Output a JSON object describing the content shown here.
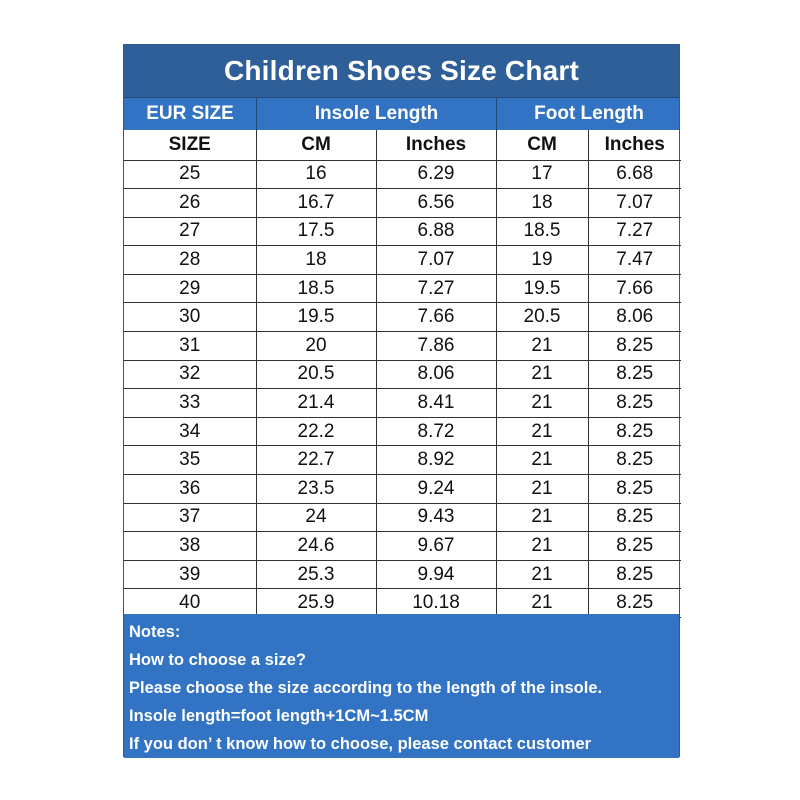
{
  "title": "Children Shoes Size Chart",
  "group_headers": {
    "eur": "EUR SIZE",
    "insole": "Insole Length",
    "foot": "Foot Length"
  },
  "sub_headers": [
    "SIZE",
    "CM",
    "Inches",
    "CM",
    "Inches"
  ],
  "rows": [
    [
      "25",
      "16",
      "6.29",
      "17",
      "6.68"
    ],
    [
      "26",
      "16.7",
      "6.56",
      "18",
      "7.07"
    ],
    [
      "27",
      "17.5",
      "6.88",
      "18.5",
      "7.27"
    ],
    [
      "28",
      "18",
      "7.07",
      "19",
      "7.47"
    ],
    [
      "29",
      "18.5",
      "7.27",
      "19.5",
      "7.66"
    ],
    [
      "30",
      "19.5",
      "7.66",
      "20.5",
      "8.06"
    ],
    [
      "31",
      "20",
      "7.86",
      "21",
      "8.25"
    ],
    [
      "32",
      "20.5",
      "8.06",
      "21",
      "8.25"
    ],
    [
      "33",
      "21.4",
      "8.41",
      "21",
      "8.25"
    ],
    [
      "34",
      "22.2",
      "8.72",
      "21",
      "8.25"
    ],
    [
      "35",
      "22.7",
      "8.92",
      "21",
      "8.25"
    ],
    [
      "36",
      "23.5",
      "9.24",
      "21",
      "8.25"
    ],
    [
      "37",
      "24",
      "9.43",
      "21",
      "8.25"
    ],
    [
      "38",
      "24.6",
      "9.67",
      "21",
      "8.25"
    ],
    [
      "39",
      "25.3",
      "9.94",
      "21",
      "8.25"
    ],
    [
      "40",
      "25.9",
      "10.18",
      "21",
      "8.25"
    ]
  ],
  "notes": [
    "Notes:",
    "How to choose a size?",
    "Please choose the size according to the length of the insole.",
    "Insole length=foot length+1CM~1.5CM",
    "If you don’ t know how to choose, please contact customer"
  ],
  "colors": {
    "title_bg": "#2e5f98",
    "header_bg": "#3273c3",
    "notes_bg": "#3273c3",
    "text_light": "#ffffff"
  }
}
